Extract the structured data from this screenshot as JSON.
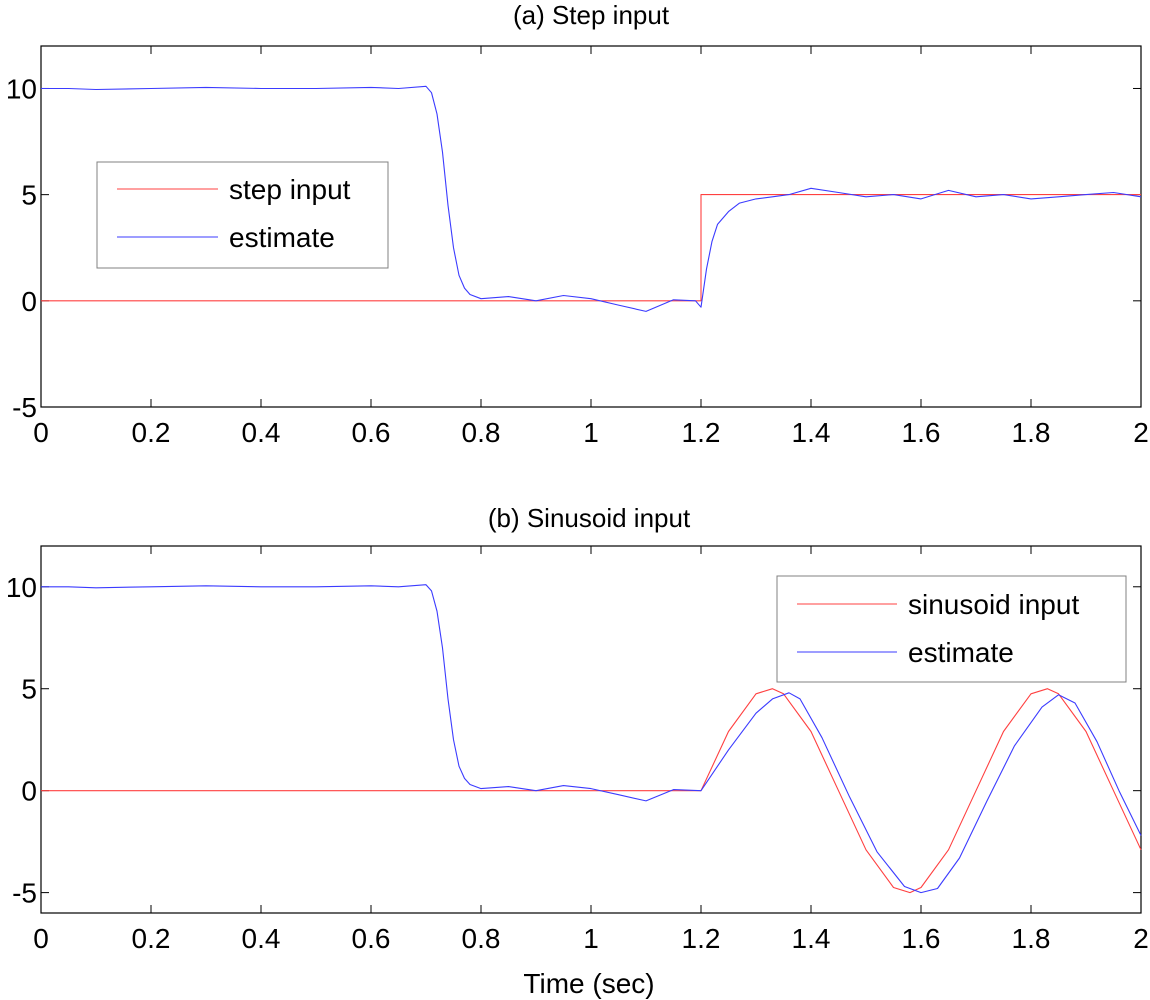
{
  "colors": {
    "input": "#ff4040",
    "estimate": "#3b3bff",
    "axes": "#000000",
    "legend_border": "#808080"
  },
  "chart_data": [
    {
      "type": "line",
      "title": "(a) Step input",
      "xlabel": "",
      "ylabel": "",
      "xlim": [
        0,
        2
      ],
      "ylim": [
        -5,
        12
      ],
      "xticks": [
        0,
        0.2,
        0.4,
        0.6,
        0.8,
        1,
        1.2,
        1.4,
        1.6,
        1.8,
        2
      ],
      "xtick_labels": [
        "0",
        "0.2",
        "0.4",
        "0.6",
        "0.8",
        "1",
        "1.2",
        "1.4",
        "1.6",
        "1.8",
        "2"
      ],
      "yticks": [
        -5,
        0,
        5,
        10
      ],
      "ytick_labels": [
        "-5",
        "0",
        "5",
        "10"
      ],
      "grid": false,
      "legend_placement": "upper-left",
      "series": [
        {
          "name": "step input",
          "color": "#ff4040",
          "x": [
            0,
            1.2,
            1.2,
            2
          ],
          "y": [
            0,
            0,
            5,
            5
          ]
        },
        {
          "name": "estimate",
          "color": "#3b3bff",
          "x": [
            0,
            0.05,
            0.1,
            0.2,
            0.3,
            0.4,
            0.5,
            0.6,
            0.65,
            0.7,
            0.71,
            0.72,
            0.73,
            0.74,
            0.75,
            0.76,
            0.77,
            0.78,
            0.8,
            0.85,
            0.9,
            0.95,
            1.0,
            1.05,
            1.1,
            1.15,
            1.19,
            1.2,
            1.21,
            1.22,
            1.23,
            1.25,
            1.27,
            1.3,
            1.33,
            1.36,
            1.4,
            1.45,
            1.5,
            1.55,
            1.6,
            1.65,
            1.7,
            1.75,
            1.8,
            1.85,
            1.9,
            1.95,
            2.0
          ],
          "y": [
            10,
            10,
            9.95,
            10,
            10.05,
            10,
            10,
            10.05,
            10,
            10.1,
            9.8,
            8.8,
            7.0,
            4.5,
            2.5,
            1.2,
            0.6,
            0.3,
            0.1,
            0.2,
            0.0,
            0.25,
            0.1,
            -0.2,
            -0.5,
            0.05,
            0.0,
            -0.3,
            1.5,
            2.8,
            3.6,
            4.2,
            4.6,
            4.8,
            4.9,
            5.0,
            5.3,
            5.1,
            4.9,
            5.0,
            4.8,
            5.2,
            4.9,
            5.0,
            4.8,
            4.9,
            5.0,
            5.1,
            4.9
          ]
        }
      ]
    },
    {
      "type": "line",
      "title": "(b) Sinusoid input",
      "xlabel": "Time (sec)",
      "ylabel": "",
      "xlim": [
        0,
        2
      ],
      "ylim": [
        -6,
        12
      ],
      "xticks": [
        0,
        0.2,
        0.4,
        0.6,
        0.8,
        1,
        1.2,
        1.4,
        1.6,
        1.8,
        2
      ],
      "xtick_labels": [
        "0",
        "0.2",
        "0.4",
        "0.6",
        "0.8",
        "1",
        "1.2",
        "1.4",
        "1.6",
        "1.8",
        "2"
      ],
      "yticks": [
        -5,
        0,
        5,
        10
      ],
      "ytick_labels": [
        "-5",
        "0",
        "5",
        "10"
      ],
      "grid": false,
      "legend_placement": "upper-right",
      "series": [
        {
          "name": "sinusoid input",
          "color": "#ff4040",
          "x": [
            0,
            1.2,
            1.25,
            1.3,
            1.33,
            1.35,
            1.4,
            1.45,
            1.5,
            1.55,
            1.58,
            1.6,
            1.65,
            1.7,
            1.75,
            1.8,
            1.83,
            1.85,
            1.9,
            1.95,
            2.0
          ],
          "y": [
            0,
            0,
            2.9,
            4.75,
            5.0,
            4.75,
            2.9,
            0.0,
            -2.9,
            -4.75,
            -5.0,
            -4.75,
            -2.9,
            0.0,
            2.9,
            4.75,
            5.0,
            4.75,
            2.9,
            0.0,
            -2.9
          ]
        },
        {
          "name": "estimate",
          "color": "#3b3bff",
          "x": [
            0,
            0.05,
            0.1,
            0.2,
            0.3,
            0.4,
            0.5,
            0.6,
            0.65,
            0.7,
            0.71,
            0.72,
            0.73,
            0.74,
            0.75,
            0.76,
            0.77,
            0.78,
            0.8,
            0.85,
            0.9,
            0.95,
            1.0,
            1.05,
            1.1,
            1.15,
            1.2,
            1.25,
            1.3,
            1.33,
            1.36,
            1.38,
            1.42,
            1.47,
            1.52,
            1.57,
            1.6,
            1.63,
            1.67,
            1.72,
            1.77,
            1.82,
            1.85,
            1.88,
            1.92,
            1.96,
            2.0
          ],
          "y": [
            10,
            10,
            9.95,
            10,
            10.05,
            10,
            10,
            10.05,
            10,
            10.1,
            9.8,
            8.8,
            7.0,
            4.5,
            2.5,
            1.2,
            0.6,
            0.3,
            0.1,
            0.2,
            0.0,
            0.25,
            0.1,
            -0.2,
            -0.5,
            0.05,
            0.0,
            2.0,
            3.8,
            4.5,
            4.8,
            4.5,
            2.6,
            -0.3,
            -3.0,
            -4.7,
            -5.0,
            -4.8,
            -3.3,
            -0.5,
            2.2,
            4.1,
            4.7,
            4.3,
            2.4,
            0.0,
            -2.2
          ]
        }
      ]
    }
  ]
}
